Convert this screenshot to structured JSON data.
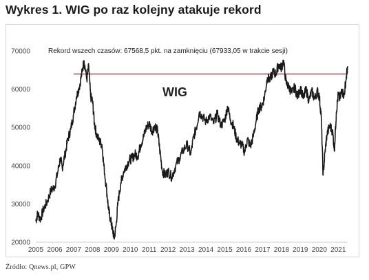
{
  "title": "Wykres 1. WIG po raz kolejny atakuje rekord",
  "source": "Źródło: Qnews.pl, GPW",
  "colors": {
    "line": "#1a1a1a",
    "record_line": "#c0283a",
    "frame": "#d6d6d6"
  },
  "chart_data": {
    "type": "line",
    "title": "Wykres 1. WIG po raz kolejny atakuje rekord",
    "xlabel": "",
    "ylabel": "",
    "series_label": "WIG",
    "annotation": "Rekord wszech czasów: 67568,5 pkt. na zamknięciu (67933,05 w trakcie sesji)",
    "record_value": 67568.5,
    "xlim": [
      2005,
      2021.5
    ],
    "ylim": [
      20000,
      70000
    ],
    "x_ticks": [
      "2005",
      "2006",
      "2007",
      "2008",
      "2009",
      "2010",
      "2011",
      "2012",
      "2013",
      "2014",
      "2015",
      "2016",
      "2017",
      "2018",
      "2019",
      "2020",
      "2021"
    ],
    "y_ticks": [
      20000,
      30000,
      40000,
      50000,
      60000,
      70000
    ],
    "grid": false,
    "series": [
      {
        "name": "WIG",
        "x": [
          2005.0,
          2005.1,
          2005.25,
          2005.4,
          2005.6,
          2005.8,
          2006.0,
          2006.15,
          2006.3,
          2006.4,
          2006.55,
          2006.7,
          2006.85,
          2007.0,
          2007.15,
          2007.3,
          2007.45,
          2007.55,
          2007.7,
          2007.8,
          2007.9,
          2008.0,
          2008.1,
          2008.2,
          2008.35,
          2008.5,
          2008.6,
          2008.75,
          2008.85,
          2008.95,
          2009.05,
          2009.15,
          2009.25,
          2009.35,
          2009.5,
          2009.65,
          2009.8,
          2009.95,
          2010.1,
          2010.25,
          2010.4,
          2010.55,
          2010.7,
          2010.85,
          2011.0,
          2011.15,
          2011.3,
          2011.45,
          2011.55,
          2011.7,
          2011.85,
          2012.0,
          2012.2,
          2012.4,
          2012.6,
          2012.8,
          2013.0,
          2013.2,
          2013.35,
          2013.5,
          2013.65,
          2013.8,
          2014.0,
          2014.2,
          2014.4,
          2014.6,
          2014.8,
          2015.0,
          2015.15,
          2015.3,
          2015.45,
          2015.6,
          2015.75,
          2015.9,
          2016.05,
          2016.2,
          2016.35,
          2016.5,
          2016.65,
          2016.8,
          2016.95,
          2017.1,
          2017.25,
          2017.4,
          2017.55,
          2017.7,
          2017.85,
          2018.0,
          2018.1,
          2018.25,
          2018.4,
          2018.55,
          2018.7,
          2018.85,
          2019.0,
          2019.15,
          2019.3,
          2019.45,
          2019.6,
          2019.75,
          2019.9,
          2020.0,
          2020.1,
          2020.2,
          2020.3,
          2020.4,
          2020.55,
          2020.7,
          2020.8,
          2020.9,
          2021.0,
          2021.1,
          2021.2,
          2021.3,
          2021.4,
          2021.5
        ],
        "y": [
          25500,
          27500,
          26000,
          28500,
          30500,
          33500,
          34500,
          38000,
          42000,
          39500,
          43000,
          47000,
          49500,
          53500,
          58000,
          60500,
          64500,
          67500,
          62500,
          66000,
          58000,
          57000,
          51000,
          48500,
          46500,
          45500,
          40000,
          33500,
          28500,
          26000,
          23500,
          21000,
          24500,
          30500,
          35500,
          38500,
          40000,
          41500,
          42000,
          43000,
          42500,
          45500,
          47500,
          50000,
          51000,
          49000,
          50500,
          49000,
          44500,
          38500,
          37500,
          38500,
          37000,
          40000,
          42000,
          44000,
          45500,
          43000,
          47500,
          50000,
          54000,
          53000,
          51500,
          53000,
          51000,
          53500,
          50500,
          52000,
          55500,
          52000,
          50500,
          47500,
          46000,
          45500,
          43500,
          47000,
          45000,
          47500,
          51500,
          55000,
          55500,
          58000,
          63000,
          62500,
          64500,
          64000,
          66500,
          65500,
          67500,
          61500,
          60500,
          59000,
          60500,
          58000,
          60500,
          57500,
          60000,
          57000,
          59500,
          57500,
          59500,
          58000,
          53000,
          37500,
          43500,
          48000,
          50500,
          49000,
          44000,
          54000,
          58500,
          57500,
          60000,
          58000,
          62000,
          66000
        ]
      }
    ]
  }
}
